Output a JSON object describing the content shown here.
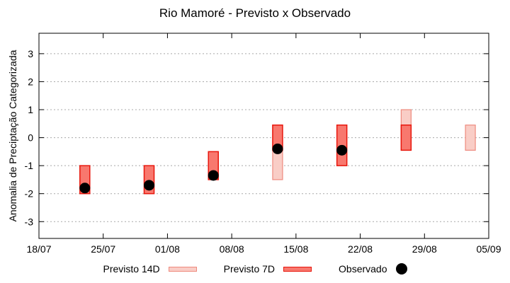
{
  "page": {
    "background": "#ffffff"
  },
  "chart_data": {
    "type": "bar",
    "subtype": "forecast-range-bars-with-observed-scatter",
    "title": "Rio Mamoré - Previsto x Observado",
    "xlabel": "",
    "ylabel": "Anomalia de Preciptação Categorizada",
    "grid": "horizontal dotted lines at integer y values",
    "legend_position": "below",
    "x_axis": {
      "tick_labels": [
        "18/07",
        "25/07",
        "01/08",
        "08/08",
        "15/08",
        "22/08",
        "29/08",
        "05/09"
      ],
      "tick_days": [
        0,
        7,
        14,
        21,
        28,
        35,
        42,
        49
      ],
      "span_days": 49
    },
    "y_axis": {
      "ticks": [
        -3,
        -2,
        -1,
        0,
        1,
        2,
        3
      ],
      "lim": [
        -3.6,
        3.73
      ]
    },
    "series": [
      {
        "name": "Previsto 14D",
        "type": "range_bar",
        "fill": "#f9cdc6",
        "border": "#ee8a7e",
        "points": [
          {
            "date": "23/07",
            "day": 5,
            "high": -1.0,
            "low": -2.0
          },
          {
            "date": "30/07",
            "day": 12,
            "high": -1.0,
            "low": -2.0
          },
          {
            "date": "06/08",
            "day": 19,
            "high": -0.5,
            "low": -1.5
          },
          {
            "date": "13/08",
            "day": 26,
            "high": 0.45,
            "low": -1.5
          },
          {
            "date": "20/08",
            "day": 33,
            "high": 0.45,
            "low": -1.0
          },
          {
            "date": "27/08",
            "day": 40,
            "high": 1.0,
            "low": -0.45
          },
          {
            "date": "03/09",
            "day": 47,
            "high": 0.45,
            "low": -0.45
          }
        ]
      },
      {
        "name": "Previsto 7D",
        "type": "range_bar",
        "fill": "#f8786e",
        "border": "#e8170d",
        "points": [
          {
            "date": "23/07",
            "day": 5,
            "high": -1.0,
            "low": -2.0
          },
          {
            "date": "30/07",
            "day": 12,
            "high": -1.0,
            "low": -2.0
          },
          {
            "date": "06/08",
            "day": 19,
            "high": -0.5,
            "low": -1.5
          },
          {
            "date": "13/08",
            "day": 26,
            "high": 0.45,
            "low": -0.45
          },
          {
            "date": "20/08",
            "day": 33,
            "high": 0.45,
            "low": -1.0
          },
          {
            "date": "27/08",
            "day": 40,
            "high": 0.45,
            "low": -0.45
          }
        ]
      },
      {
        "name": "Observado",
        "type": "scatter",
        "color": "#000000",
        "points": [
          {
            "date": "23/07",
            "day": 5,
            "value": -1.8
          },
          {
            "date": "30/07",
            "day": 12,
            "value": -1.7
          },
          {
            "date": "06/08",
            "day": 19,
            "value": -1.35
          },
          {
            "date": "13/08",
            "day": 26,
            "value": -0.4
          },
          {
            "date": "20/08",
            "day": 33,
            "value": -0.45
          }
        ]
      }
    ],
    "legend": [
      {
        "label": "Previsto 14D",
        "swatch": "box",
        "fill": "#f9cdc6",
        "border": "#ee8a7e"
      },
      {
        "label": "Previsto 7D",
        "swatch": "box",
        "fill": "#f8786e",
        "border": "#e8170d"
      },
      {
        "label": "Observado",
        "swatch": "dot",
        "fill": "#000000"
      }
    ],
    "colors": {
      "grid": "#a8a8a8",
      "axis": "#000000",
      "text": "#000000"
    }
  }
}
